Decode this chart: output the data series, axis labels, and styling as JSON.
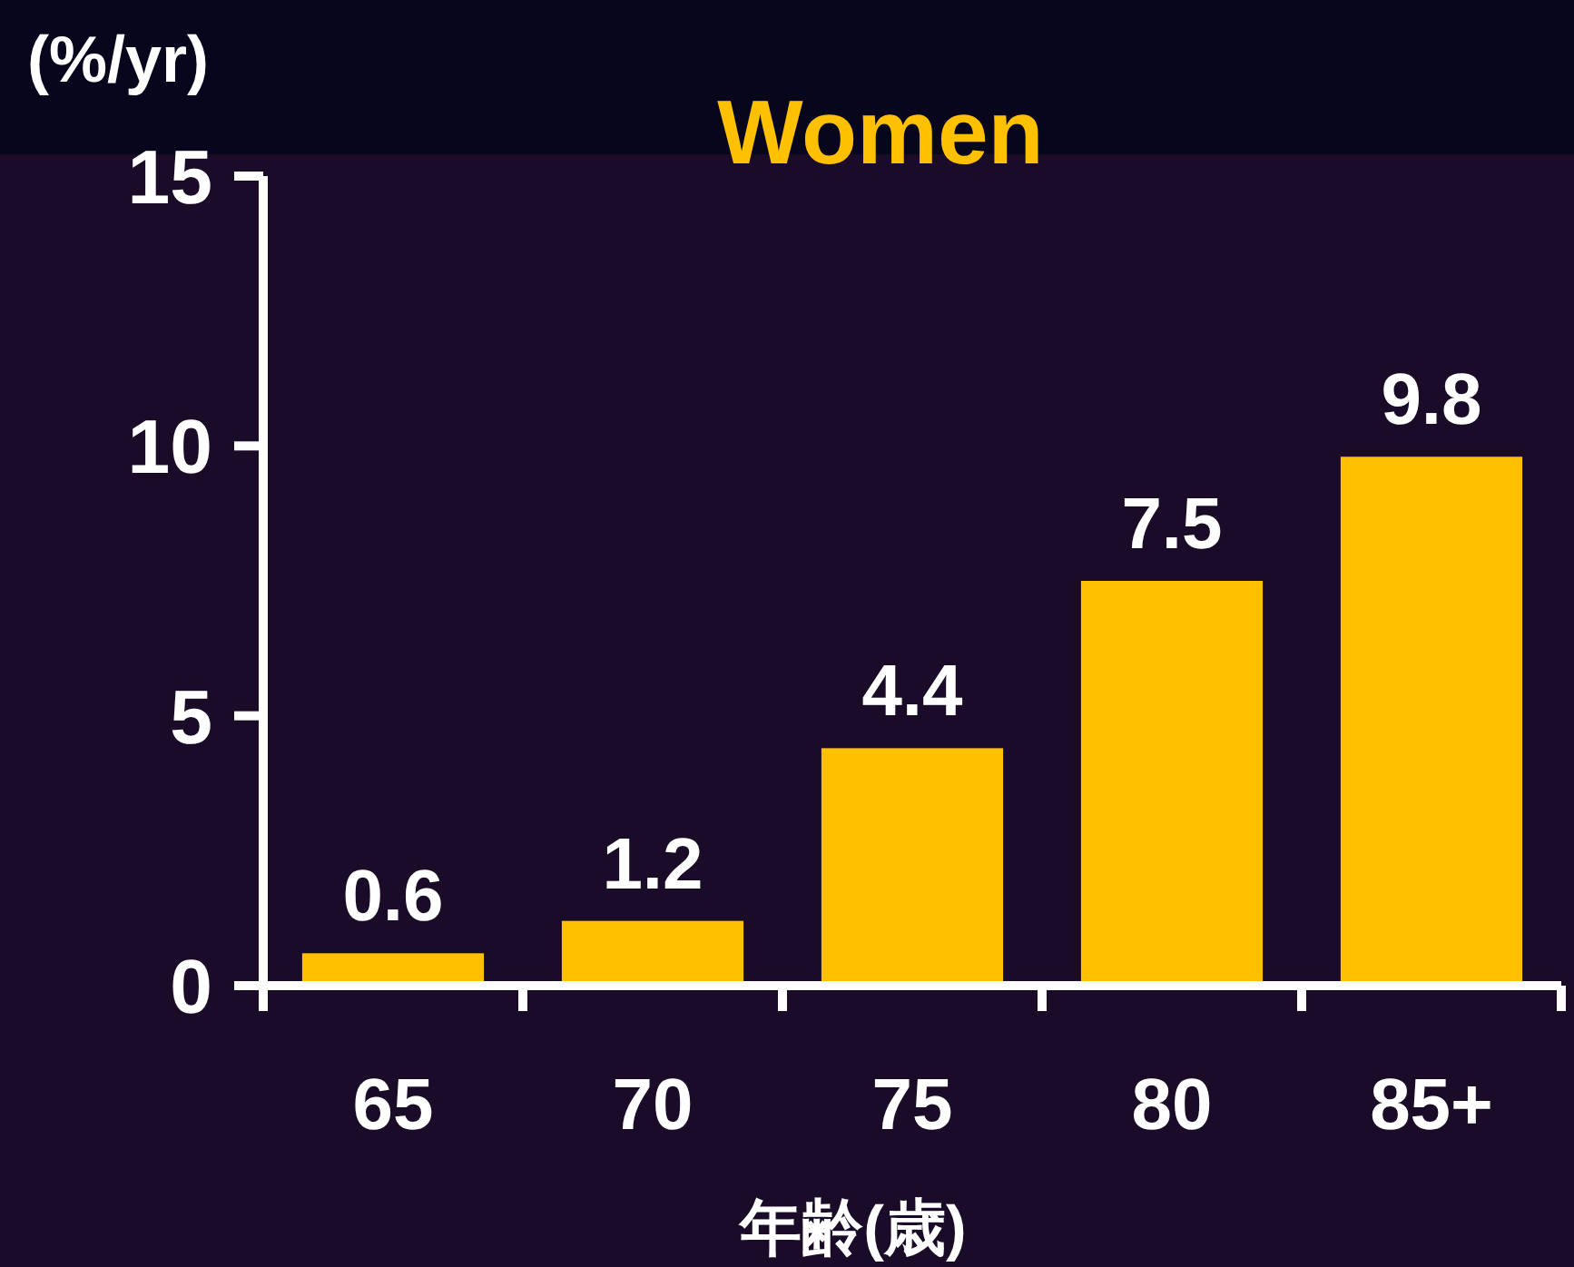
{
  "chart_data": {
    "type": "bar",
    "title": "Women",
    "xlabel": "年齢(歳)",
    "ylabel": "(%/yr)",
    "categories": [
      "65",
      "70",
      "75",
      "80",
      "85+"
    ],
    "values": [
      0.6,
      1.2,
      4.4,
      7.5,
      9.8
    ],
    "color": "#ffc000",
    "ylim": [
      0,
      15
    ],
    "yticks": [
      0,
      5,
      10,
      15
    ],
    "data_labels": true
  }
}
